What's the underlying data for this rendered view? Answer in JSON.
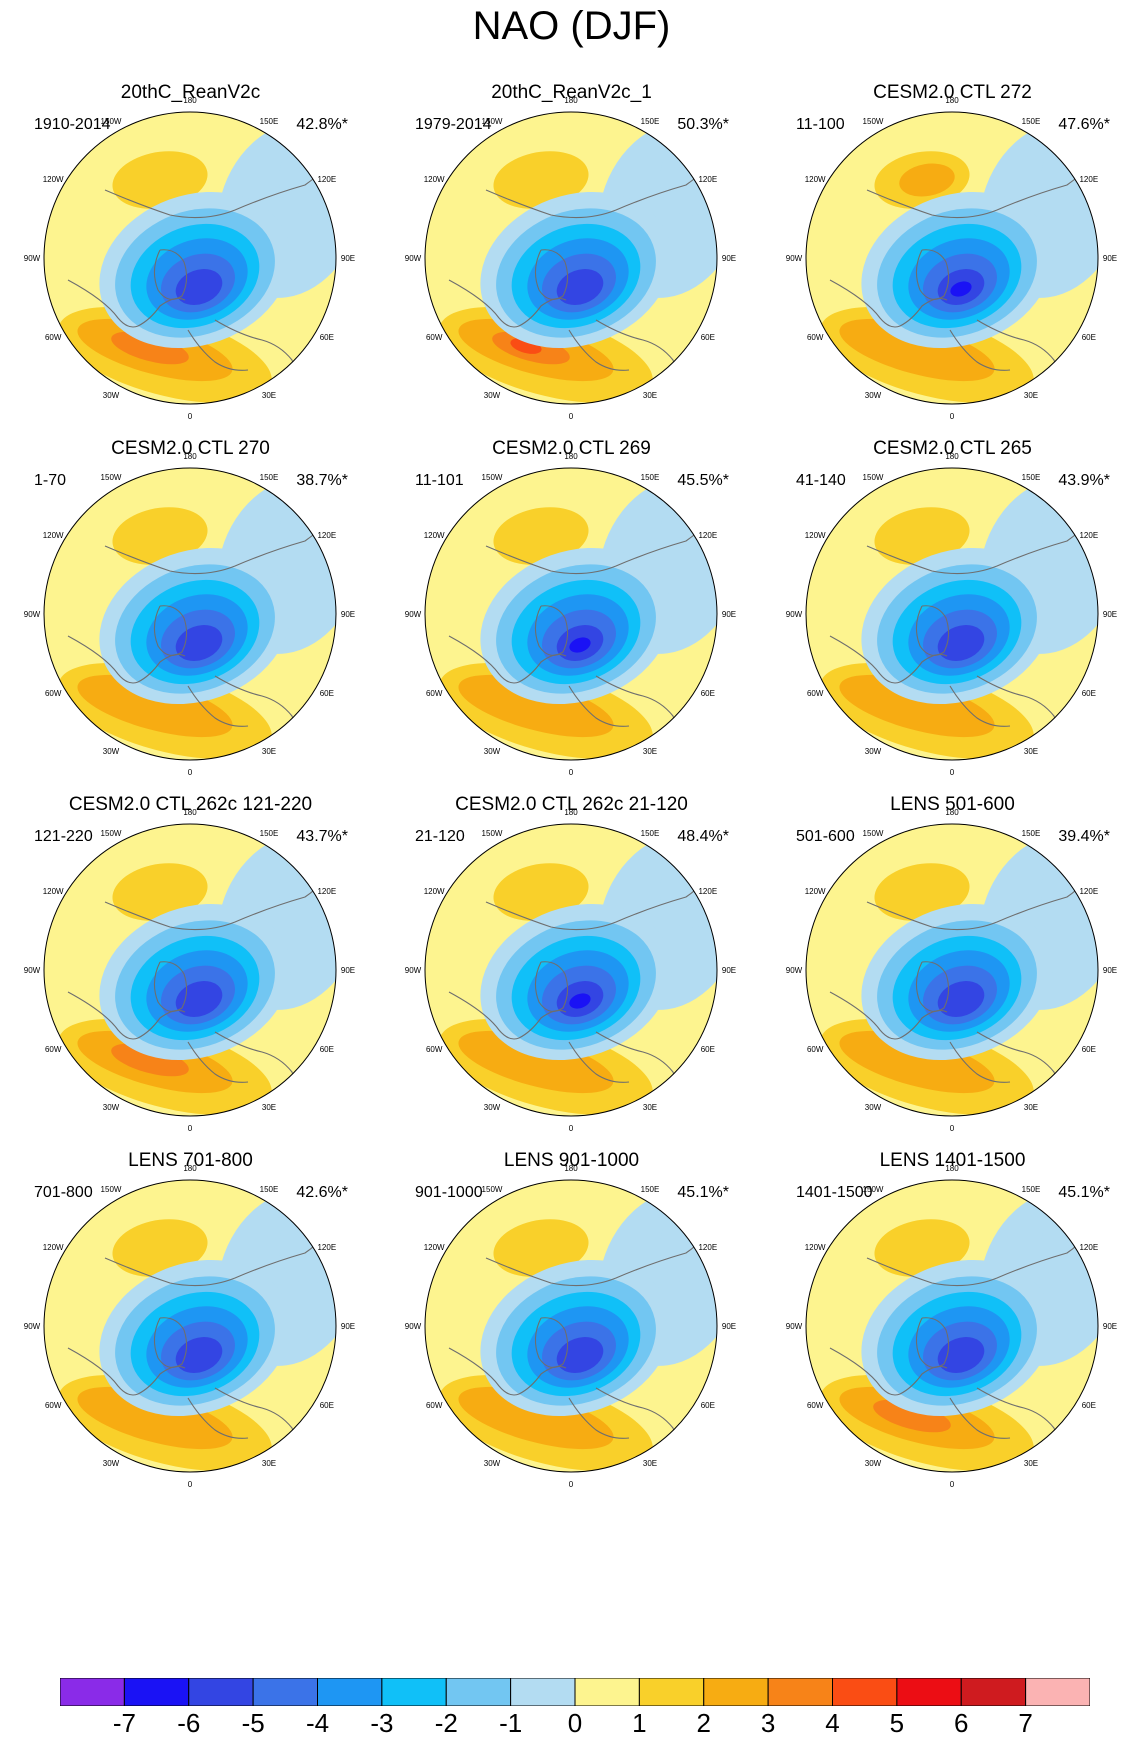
{
  "title": "NAO (DJF)",
  "colors": {
    "-7": "#8a2be8",
    "-6": "#1a12f5",
    "-5": "#3345e3",
    "-4": "#3b73e8",
    "-3": "#1e96f3",
    "-2": "#10c0f8",
    "-1": "#72c6f2",
    "0": "#b3dcf2",
    "1": "#fdf48f",
    "2": "#f9d02a",
    "3": "#f7ac12",
    "4": "#f78318",
    "5": "#fa4d14",
    "6": "#ec0d14",
    "7": "#cf1b1f",
    "8": "#fbb3b3",
    "land_outline": "#6e6e6e",
    "map_border": "#000000"
  },
  "lon_labels": [
    "180",
    "150E",
    "120E",
    "90E",
    "60E",
    "30E",
    "0",
    "30W",
    "60W",
    "90W",
    "120W",
    "150W"
  ],
  "panels": [
    {
      "title": "20thC_ReanV2c",
      "period": "1910-2014",
      "variance": "42.8%*",
      "center_min": -5,
      "atlantic_max": 4,
      "pacific_max": 2
    },
    {
      "title": "20thC_ReanV2c_1",
      "period": "1979-2014",
      "variance": "50.3%*",
      "center_min": -5,
      "atlantic_max": 5,
      "pacific_max": 2
    },
    {
      "title": "CESM2.0 CTL 272",
      "period": "11-100",
      "variance": "47.6%*",
      "center_min": -6,
      "atlantic_max": 3,
      "pacific_max": 3
    },
    {
      "title": "CESM2.0 CTL 270",
      "period": "1-70",
      "variance": "38.7%*",
      "center_min": -5,
      "atlantic_max": 3,
      "pacific_max": 2
    },
    {
      "title": "CESM2.0 CTL 269",
      "period": "11-101",
      "variance": "45.5%*",
      "center_min": -6,
      "atlantic_max": 3,
      "pacific_max": 2
    },
    {
      "title": "CESM2.0 CTL 265",
      "period": "41-140",
      "variance": "43.9%*",
      "center_min": -5,
      "atlantic_max": 3,
      "pacific_max": 2
    },
    {
      "title": "CESM2.0 CTL 262c 121-220",
      "period": "121-220",
      "variance": "43.7%*",
      "center_min": -5,
      "atlantic_max": 4,
      "pacific_max": 2
    },
    {
      "title": "CESM2.0 CTL 262c 21-120",
      "period": "21-120",
      "variance": "48.4%*",
      "center_min": -6,
      "atlantic_max": 3,
      "pacific_max": 2
    },
    {
      "title": "LENS 501-600",
      "period": "501-600",
      "variance": "39.4%*",
      "center_min": -5,
      "atlantic_max": 3,
      "pacific_max": 2
    },
    {
      "title": "LENS 701-800",
      "period": "701-800",
      "variance": "42.6%*",
      "center_min": -5,
      "atlantic_max": 3,
      "pacific_max": 2
    },
    {
      "title": "LENS 901-1000",
      "period": "901-1000",
      "variance": "45.1%*",
      "center_min": -5,
      "atlantic_max": 3,
      "pacific_max": 2
    },
    {
      "title": "LENS 1401-1500",
      "period": "1401-1500",
      "variance": "45.1%*",
      "center_min": -5,
      "atlantic_max": 4,
      "pacific_max": 2
    }
  ],
  "colorbar": {
    "levels": [
      "-7",
      "-6",
      "-5",
      "-4",
      "-3",
      "-2",
      "-1",
      "0",
      "1",
      "2",
      "3",
      "4",
      "5",
      "6",
      "7"
    ],
    "colors": [
      "#8a2be8",
      "#1a12f5",
      "#3345e3",
      "#3b73e8",
      "#1e96f3",
      "#10c0f8",
      "#72c6f2",
      "#b3dcf2",
      "#fdf48f",
      "#f9d02a",
      "#f7ac12",
      "#f78318",
      "#fa4d14",
      "#ec0d14",
      "#cf1b1f",
      "#fbb3b3"
    ]
  }
}
